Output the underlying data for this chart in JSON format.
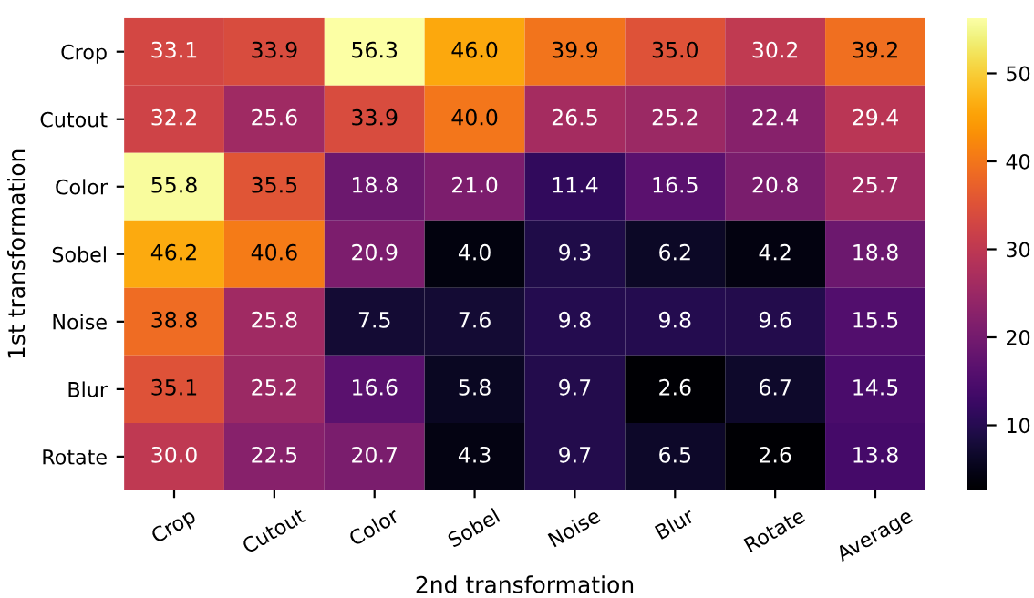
{
  "chart_data": {
    "type": "heatmap",
    "xlabel": "2nd transformation",
    "ylabel": "1st transformation",
    "categories": [
      "Crop",
      "Cutout",
      "Color",
      "Sobel",
      "Noise",
      "Blur",
      "Rotate",
      "Average"
    ],
    "y_categories": [
      "Crop",
      "Cutout",
      "Color",
      "Sobel",
      "Noise",
      "Blur",
      "Rotate"
    ],
    "cells": [
      [
        33.1,
        33.9,
        56.3,
        46.0,
        39.9,
        35.0,
        30.2,
        39.2
      ],
      [
        32.2,
        25.6,
        33.9,
        40.0,
        26.5,
        25.2,
        22.4,
        29.4
      ],
      [
        55.8,
        35.5,
        18.8,
        21.0,
        11.4,
        16.5,
        20.8,
        25.7
      ],
      [
        46.2,
        40.6,
        20.9,
        4.0,
        9.3,
        6.2,
        4.2,
        18.8
      ],
      [
        38.8,
        25.8,
        7.5,
        7.6,
        9.8,
        9.8,
        9.6,
        15.5
      ],
      [
        35.1,
        25.2,
        16.6,
        5.8,
        9.7,
        2.6,
        6.7,
        14.5
      ],
      [
        30.0,
        22.5,
        20.7,
        4.3,
        9.7,
        6.5,
        2.6,
        13.8
      ]
    ],
    "data_labels": true,
    "cell_labels": [
      [
        "33.1",
        "33.9",
        "56.3",
        "46.0",
        "39.9",
        "35.0",
        "30.2",
        "39.2"
      ],
      [
        "32.2",
        "25.6",
        "33.9",
        "40.0",
        "26.5",
        "25.2",
        "22.4",
        "29.4"
      ],
      [
        "55.8",
        "35.5",
        "18.8",
        "21.0",
        "11.4",
        "16.5",
        "20.8",
        "25.7"
      ],
      [
        "46.2",
        "40.6",
        "20.9",
        "4.0",
        "9.3",
        "6.2",
        "4.2",
        "18.8"
      ],
      [
        "38.8",
        "25.8",
        "7.5",
        "7.6",
        "9.8",
        "9.8",
        "9.6",
        "15.5"
      ],
      [
        "35.1",
        "25.2",
        "16.6",
        "5.8",
        "9.7",
        "2.6",
        "6.7",
        "14.5"
      ],
      [
        "30.0",
        "22.5",
        "20.7",
        "4.3",
        "9.7",
        "6.5",
        "2.6",
        "13.8"
      ]
    ],
    "clim": [
      2.6,
      56.3
    ],
    "cticks": [
      10,
      20,
      30,
      40,
      50
    ]
  }
}
